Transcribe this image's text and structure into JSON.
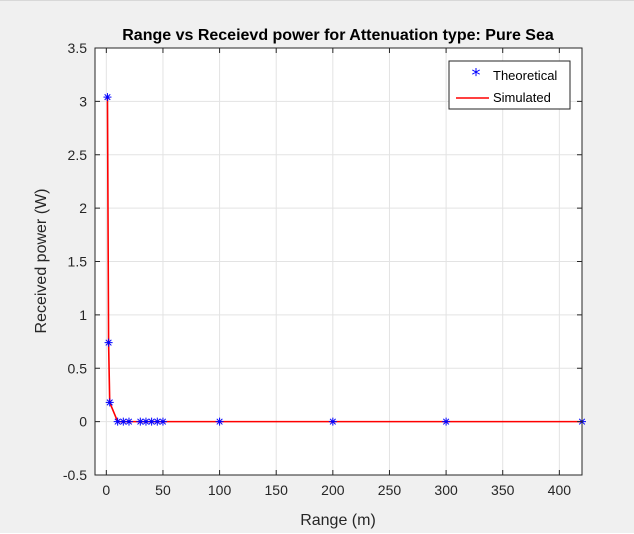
{
  "chart_data": {
    "type": "line",
    "title": "Range vs Receievd power for Attenuation type: Pure Sea",
    "xlabel": "Range (m)",
    "ylabel": "Received power (W)",
    "xlim": [
      -10,
      420
    ],
    "ylim": [
      -0.5,
      3.5
    ],
    "xticks": [
      0,
      50,
      100,
      150,
      200,
      250,
      300,
      350,
      400
    ],
    "yticks": [
      -0.5,
      0,
      0.5,
      1,
      1.5,
      2,
      2.5,
      3,
      3.5
    ],
    "xtick_labels": [
      "0",
      "50",
      "100",
      "150",
      "200",
      "250",
      "300",
      "350",
      "400"
    ],
    "ytick_labels": [
      "-0.5",
      "0",
      "0.5",
      "1",
      "1.5",
      "2",
      "2.5",
      "3",
      "3.5"
    ],
    "grid": true,
    "legend_position": "top-right",
    "series": [
      {
        "name": "Theoretical",
        "style": "marker",
        "marker": "*",
        "color": "#0000ff",
        "x": [
          1,
          2,
          3,
          10,
          15,
          20,
          30,
          35,
          40,
          45,
          50,
          100,
          200,
          300,
          420
        ],
        "y": [
          3.04,
          0.74,
          0.18,
          0.0,
          0.0,
          0.0,
          0.0,
          0.0,
          0.0,
          0.0,
          0.0,
          0.0,
          0.0,
          0.0,
          0.0
        ]
      },
      {
        "name": "Simulated",
        "style": "line",
        "color": "#ff0000",
        "x": [
          1,
          2,
          3,
          10,
          15,
          20,
          30,
          35,
          40,
          45,
          50,
          100,
          200,
          300,
          420
        ],
        "y": [
          3.04,
          0.74,
          0.18,
          0.0,
          0.0,
          0.0,
          0.0,
          0.0,
          0.0,
          0.0,
          0.0,
          0.0,
          0.0,
          0.0,
          0.0
        ]
      }
    ]
  }
}
